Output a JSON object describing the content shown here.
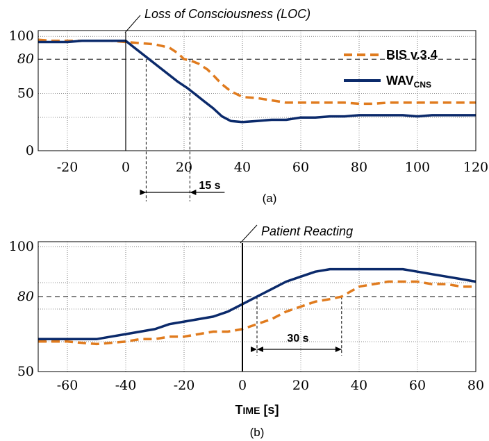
{
  "colors": {
    "bis": "#E07B1E",
    "wav": "#0B2A6B",
    "axis": "#000000",
    "grid": "#666666"
  },
  "chart_data": [
    {
      "type": "line",
      "caption": "(a)",
      "annotation": "Loss of Consciousness (LOC)",
      "interval_label": "15 s",
      "xlim": [
        -30,
        120
      ],
      "ylim": [
        0,
        105
      ],
      "x_ticks": [
        "-20",
        "0",
        "20",
        "40",
        "60",
        "80",
        "100",
        "120"
      ],
      "x_tick_values": [
        -20,
        0,
        20,
        40,
        60,
        80,
        100,
        120
      ],
      "y_ticks": [
        "0",
        "50",
        "80",
        "100"
      ],
      "y_tick_values": [
        0,
        50,
        80,
        100
      ],
      "threshold": 80,
      "event_x": 0,
      "markers": [
        7,
        22
      ],
      "grid": true,
      "legend_position": "top-right",
      "series": [
        {
          "name": "BIS v.3.4",
          "style": "dashed",
          "x": [
            -30,
            -25,
            -20,
            -15,
            -10,
            -5,
            0,
            5,
            10,
            15,
            18,
            20,
            22,
            25,
            28,
            30,
            33,
            36,
            40,
            45,
            50,
            55,
            60,
            65,
            70,
            75,
            80,
            85,
            90,
            95,
            100,
            105,
            110,
            115,
            120
          ],
          "y": [
            97,
            96,
            96,
            96,
            96,
            96,
            95,
            94,
            93,
            90,
            85,
            80,
            79,
            76,
            71,
            66,
            58,
            52,
            47,
            46,
            44,
            42,
            42,
            42,
            42,
            42,
            41,
            41,
            42,
            42,
            42,
            42,
            42,
            42,
            42
          ]
        },
        {
          "name": "WAV",
          "name_sub": "CNS",
          "style": "solid",
          "x": [
            -30,
            -25,
            -20,
            -15,
            -10,
            -5,
            0,
            3,
            6,
            9,
            12,
            15,
            18,
            21,
            24,
            27,
            30,
            33,
            36,
            40,
            45,
            50,
            55,
            60,
            65,
            70,
            75,
            80,
            85,
            90,
            95,
            100,
            105,
            110,
            115,
            120
          ],
          "y": [
            95,
            95,
            95,
            96,
            96,
            96,
            96,
            90,
            84,
            78,
            72,
            66,
            60,
            55,
            49,
            43,
            37,
            30,
            26,
            25,
            26,
            27,
            27,
            29,
            29,
            30,
            30,
            31,
            31,
            31,
            31,
            30,
            31,
            31,
            31,
            31
          ]
        }
      ]
    },
    {
      "type": "line",
      "caption": "(b)",
      "annotation": "Patient Reacting",
      "interval_label": "30 s",
      "xlabel": "Time [s]",
      "xlim": [
        -70,
        80
      ],
      "ylim": [
        50,
        102
      ],
      "x_ticks": [
        "-60",
        "-40",
        "-20",
        "0",
        "20",
        "40",
        "60",
        "80"
      ],
      "x_tick_values": [
        -60,
        -40,
        -20,
        0,
        20,
        40,
        60,
        80
      ],
      "y_ticks": [
        "50",
        "80",
        "100"
      ],
      "y_tick_values": [
        50,
        80,
        100
      ],
      "threshold": 80,
      "event_x": 0,
      "markers": [
        5,
        34
      ],
      "grid": true,
      "series": [
        {
          "name": "BIS v.3.4",
          "style": "dashed",
          "x": [
            -70,
            -60,
            -50,
            -40,
            -35,
            -30,
            -25,
            -20,
            -15,
            -10,
            -5,
            0,
            5,
            10,
            15,
            20,
            25,
            30,
            34,
            40,
            45,
            50,
            55,
            60,
            65,
            70,
            75,
            80
          ],
          "y": [
            62,
            62,
            61,
            62,
            63,
            63,
            64,
            64,
            65,
            66,
            66,
            67,
            69,
            71,
            74,
            76,
            78,
            79,
            80,
            84,
            85,
            86,
            86,
            86,
            85,
            85,
            84,
            84
          ]
        },
        {
          "name": "WAV",
          "name_sub": "CNS",
          "style": "solid",
          "x": [
            -70,
            -60,
            -50,
            -45,
            -40,
            -35,
            -30,
            -25,
            -20,
            -15,
            -10,
            -5,
            0,
            5,
            10,
            15,
            20,
            25,
            30,
            35,
            40,
            45,
            50,
            55,
            60,
            65,
            70,
            75,
            80
          ],
          "y": [
            63,
            63,
            63,
            64,
            65,
            66,
            67,
            69,
            70,
            71,
            72,
            74,
            77,
            80,
            83,
            86,
            88,
            90,
            91,
            91,
            91,
            91,
            91,
            91,
            90,
            89,
            88,
            87,
            86
          ]
        }
      ]
    }
  ]
}
